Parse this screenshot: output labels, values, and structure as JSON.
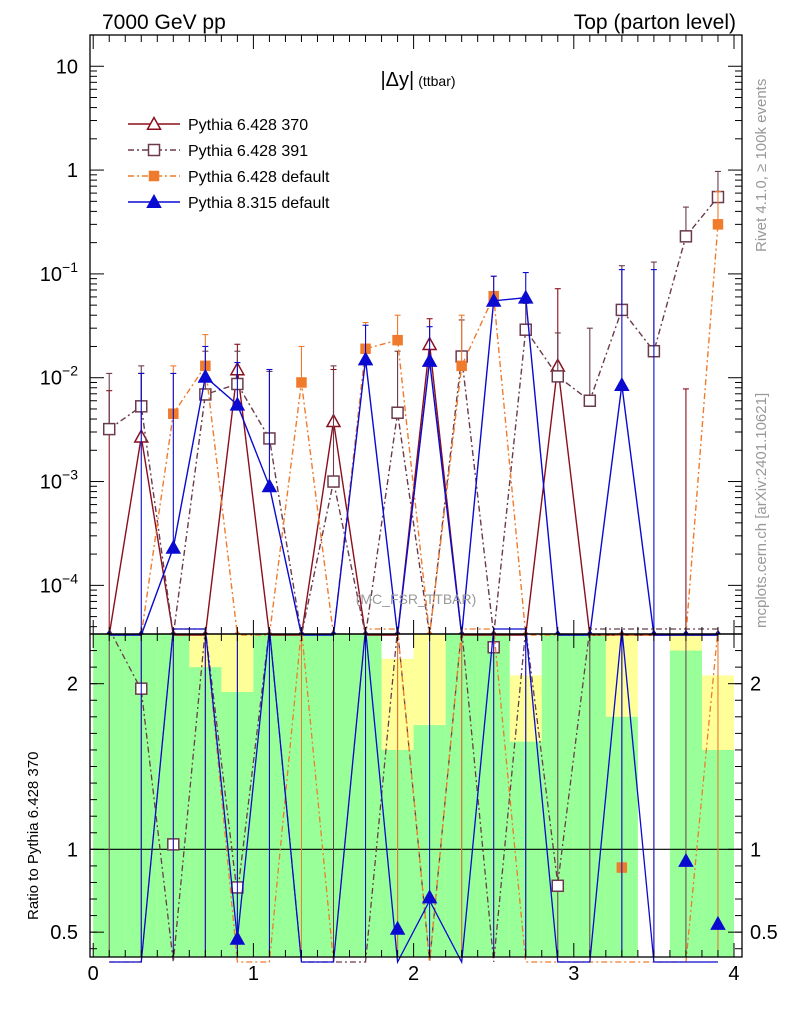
{
  "header": {
    "left": "7000 GeV pp",
    "right": "Top (parton level)"
  },
  "side_labels": {
    "rivet": "Rivet 4.1.0, ≥ 100k events",
    "mcplots": "mcplots.cern.ch [arXiv:2401.10621]"
  },
  "chart_data": {
    "type": "line",
    "title": "|Δy| (ttbar)",
    "watermark": "(MC_FSR_TTBAR)",
    "x": [
      0.1,
      0.3,
      0.5,
      0.7,
      0.9,
      1.1,
      1.3,
      1.5,
      1.7,
      1.9,
      2.1,
      2.3,
      2.5,
      2.7,
      2.9,
      3.1,
      3.3,
      3.5,
      3.7,
      3.9
    ],
    "xlim": [
      -0.02,
      4.05
    ],
    "main": {
      "yscale": "log",
      "ylim": [
        3.4e-05,
        20
      ],
      "yticks": [
        {
          "v": 0.0001,
          "b": "10",
          "e": "−4"
        },
        {
          "v": 0.001,
          "b": "10",
          "e": "−3"
        },
        {
          "v": 0.01,
          "b": "10",
          "e": "−2"
        },
        {
          "v": 0.1,
          "b": "10",
          "e": "−1"
        },
        {
          "v": 1,
          "b": "1",
          "e": ""
        },
        {
          "v": 10,
          "b": "10",
          "e": ""
        }
      ]
    },
    "ratio": {
      "ylabel": "Ratio to Pythia 6.428 370",
      "ylim": [
        0.35,
        2.3
      ],
      "yticks": [
        0.5,
        1,
        2
      ],
      "yticklabels": [
        "0.5",
        "1",
        "2"
      ],
      "xticks": [
        0,
        1,
        2,
        3,
        4
      ],
      "xticklabels": [
        "0",
        "1",
        "2",
        "3",
        "4"
      ],
      "ref": 1,
      "band_inner": [
        [
          0.0,
          0.2,
          2.3
        ],
        [
          0.2,
          0.4,
          2.3
        ],
        [
          0.4,
          0.6,
          2.3
        ],
        [
          0.6,
          0.8,
          2.1
        ],
        [
          0.8,
          1.0,
          1.95
        ],
        [
          1.0,
          1.2,
          2.3
        ],
        [
          1.2,
          1.4,
          2.3
        ],
        [
          1.4,
          1.6,
          2.3
        ],
        [
          1.6,
          1.8,
          2.3
        ],
        [
          1.8,
          2.0,
          1.6
        ],
        [
          2.0,
          2.2,
          1.75
        ],
        [
          2.2,
          2.4,
          2.3
        ],
        [
          2.4,
          2.6,
          2.3
        ],
        [
          2.6,
          2.8,
          1.65
        ],
        [
          2.8,
          3.0,
          2.3
        ],
        [
          3.0,
          3.2,
          2.3
        ],
        [
          3.2,
          3.4,
          1.8
        ],
        [
          3.6,
          3.8,
          2.2
        ],
        [
          3.8,
          4.0,
          1.6
        ]
      ],
      "band_outer": [
        [
          0.0,
          0.2,
          2.3
        ],
        [
          0.2,
          0.4,
          2.3
        ],
        [
          0.4,
          0.6,
          2.3
        ],
        [
          0.6,
          0.8,
          2.3
        ],
        [
          0.8,
          1.0,
          2.3
        ],
        [
          1.0,
          1.2,
          2.3
        ],
        [
          1.2,
          1.4,
          2.3
        ],
        [
          1.4,
          1.6,
          2.3
        ],
        [
          1.6,
          1.8,
          2.3
        ],
        [
          1.8,
          2.0,
          2.15
        ],
        [
          2.0,
          2.2,
          2.3
        ],
        [
          2.2,
          2.4,
          2.3
        ],
        [
          2.4,
          2.6,
          2.3
        ],
        [
          2.6,
          2.8,
          2.05
        ],
        [
          2.8,
          3.0,
          2.3
        ],
        [
          3.0,
          3.2,
          2.3
        ],
        [
          3.2,
          3.4,
          2.3
        ],
        [
          3.6,
          3.8,
          2.3
        ],
        [
          3.8,
          4.0,
          2.05
        ]
      ]
    },
    "series": [
      {
        "name": "Pythia 6.428 370",
        "color": "#8b0f1c",
        "dash": "",
        "marker": "triangle-open",
        "values": [
          null,
          0.0027,
          null,
          null,
          0.012,
          null,
          null,
          0.0038,
          null,
          null,
          0.021,
          null,
          null,
          null,
          0.013,
          null,
          null,
          null,
          null,
          null
        ],
        "err_hi": [
          0.0075,
          0.011,
          null,
          null,
          0.021,
          null,
          null,
          0.012,
          null,
          null,
          0.037,
          null,
          null,
          null,
          0.072,
          null,
          null,
          null,
          0.0078,
          null
        ],
        "ratio": []
      },
      {
        "name": "Pythia 6.428 391",
        "color": "#6b3b4d",
        "dash": "6,3,2,3",
        "marker": "square-open",
        "values": [
          0.0032,
          0.0053,
          null,
          0.0069,
          0.0087,
          0.0026,
          null,
          0.001,
          null,
          0.0046,
          null,
          0.016,
          null,
          0.029,
          0.0103,
          0.006,
          0.045,
          0.018,
          0.23,
          0.55
        ],
        "err_hi": [
          0.011,
          0.013,
          null,
          0.018,
          0.018,
          0.0115,
          null,
          0.013,
          null,
          0.018,
          null,
          0.036,
          null,
          0.052,
          0.027,
          0.03,
          0.12,
          0.13,
          0.44,
          0.97
        ],
        "ratio": [
          [
            0.3,
            1.97
          ],
          [
            0.5,
            1.03
          ],
          [
            0.9,
            0.77
          ],
          [
            2.5,
            2.22
          ],
          [
            2.9,
            0.78
          ]
        ]
      },
      {
        "name": "Pythia 6.428 default",
        "color": "#f07b2c",
        "dash": "6,3,2,3",
        "marker": "square-filled",
        "values": [
          null,
          null,
          0.0045,
          0.013,
          null,
          null,
          0.009,
          null,
          0.019,
          0.023,
          null,
          0.013,
          0.061,
          null,
          null,
          null,
          null,
          null,
          null,
          0.3
        ],
        "err_hi": [
          null,
          null,
          0.013,
          0.026,
          null,
          null,
          0.02,
          null,
          0.034,
          0.04,
          null,
          0.04,
          0.095,
          null,
          null,
          null,
          null,
          null,
          null,
          0.62
        ],
        "ratio": [
          [
            3.3,
            0.89
          ]
        ]
      },
      {
        "name": "Pythia 8.315 default",
        "color": "#0a0ad0",
        "dash": "",
        "marker": "triangle-filled",
        "values": [
          null,
          null,
          0.00023,
          0.0102,
          0.0055,
          0.0009,
          null,
          null,
          0.015,
          null,
          0.0145,
          null,
          0.055,
          0.059,
          null,
          null,
          0.0085,
          null,
          null,
          null
        ],
        "err_hi": [
          null,
          0.011,
          0.011,
          0.02,
          0.014,
          0.012,
          null,
          null,
          0.032,
          null,
          0.031,
          null,
          0.095,
          0.103,
          null,
          null,
          0.11,
          0.11,
          null,
          null
        ],
        "ratio": [
          [
            0.9,
            0.46
          ],
          [
            1.9,
            0.52
          ],
          [
            2.1,
            0.71
          ],
          [
            3.7,
            0.93
          ],
          [
            3.9,
            0.55
          ]
        ]
      }
    ]
  }
}
